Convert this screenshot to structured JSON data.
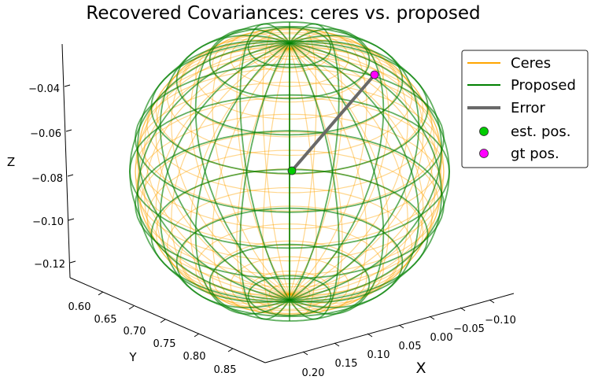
{
  "chart_data": {
    "type": "scatter",
    "projection": "3d",
    "title": "Recovered Covariances: ceres vs. proposed",
    "xlabel": "X",
    "ylabel": "Y",
    "zlabel": "Z",
    "x_ticks": [
      "0.20",
      "0.15",
      "0.10",
      "0.05",
      "0.00",
      "−0.05",
      "−0.10"
    ],
    "y_ticks": [
      "0.60",
      "0.65",
      "0.70",
      "0.75",
      "0.80",
      "0.85"
    ],
    "z_ticks": [
      "−0.04",
      "−0.06",
      "−0.08",
      "−0.10",
      "−0.12"
    ],
    "xlim": [
      -0.13,
      0.22
    ],
    "ylim": [
      0.58,
      0.88
    ],
    "zlim": [
      -0.125,
      -0.03
    ],
    "legend_position": "top-right",
    "legend": [
      {
        "label": "Ceres",
        "kind": "line",
        "color": "#ffa500"
      },
      {
        "label": "Proposed",
        "kind": "line",
        "color": "#008000"
      },
      {
        "label": "Error",
        "kind": "thick-line",
        "color": "#696969"
      },
      {
        "label": "est. pos.",
        "kind": "marker",
        "color": "#00cc00"
      },
      {
        "label": "gt pos.",
        "kind": "marker",
        "color": "#ff00ff"
      }
    ],
    "series": [
      {
        "name": "Ceres",
        "kind": "wireframe-ellipsoid",
        "color": "#ffa500"
      },
      {
        "name": "Proposed",
        "kind": "wireframe-ellipsoid",
        "color": "#008000"
      },
      {
        "name": "Error",
        "kind": "segment",
        "color": "#696969"
      },
      {
        "name": "est. pos.",
        "kind": "point",
        "color": "#00cc00"
      },
      {
        "name": "gt pos.",
        "kind": "point",
        "color": "#ff00ff"
      }
    ]
  }
}
